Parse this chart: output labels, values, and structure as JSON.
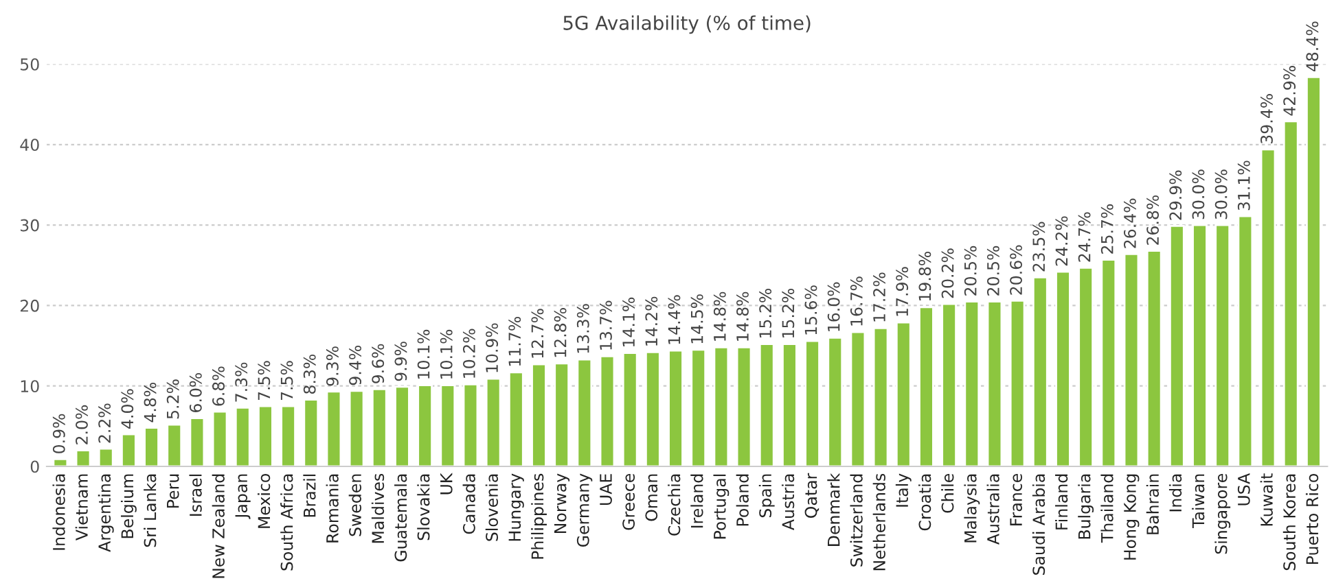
{
  "chart_data": {
    "type": "bar",
    "title": "5G Availability (% of time)",
    "categories": [
      "Indonesia",
      "Vietnam",
      "Argentina",
      "Belgium",
      "Sri Lanka",
      "Peru",
      "Israel",
      "New Zealand",
      "Japan",
      "Mexico",
      "South Africa",
      "Brazil",
      "Romania",
      "Sweden",
      "Maldives",
      "Guatemala",
      "Slovakia",
      "UK",
      "Canada",
      "Slovenia",
      "Hungary",
      "Philippines",
      "Norway",
      "Germany",
      "UAE",
      "Greece",
      "Oman",
      "Czechia",
      "Ireland",
      "Portugal",
      "Poland",
      "Spain",
      "Austria",
      "Qatar",
      "Denmark",
      "Switzerland",
      "Netherlands",
      "Italy",
      "Croatia",
      "Chile",
      "Malaysia",
      "Australia",
      "France",
      "Saudi Arabia",
      "Finland",
      "Bulgaria",
      "Thailand",
      "Hong Kong",
      "Bahrain",
      "India",
      "Taiwan",
      "Singapore",
      "USA",
      "Kuwait",
      "South Korea",
      "Puerto Rico"
    ],
    "values": [
      0.9,
      2.0,
      2.2,
      4.0,
      4.8,
      5.2,
      6.0,
      6.8,
      7.3,
      7.5,
      7.5,
      8.3,
      9.3,
      9.4,
      9.6,
      9.9,
      10.1,
      10.1,
      10.2,
      10.9,
      11.7,
      12.7,
      12.8,
      13.3,
      13.7,
      14.1,
      14.2,
      14.4,
      14.5,
      14.8,
      14.8,
      15.2,
      15.2,
      15.6,
      16.0,
      16.7,
      17.2,
      17.9,
      19.8,
      20.2,
      20.5,
      20.5,
      20.6,
      23.5,
      24.2,
      24.7,
      25.7,
      26.4,
      26.8,
      29.9,
      30.0,
      30.0,
      31.1,
      39.4,
      42.9,
      48.4
    ],
    "value_labels": [
      "0.9%",
      "2.0%",
      "2.2%",
      "4.0%",
      "4.8%",
      "5.2%",
      "6.0%",
      "6.8%",
      "7.3%",
      "7.5%",
      "7.5%",
      "8.3%",
      "9.3%",
      "9.4%",
      "9.6%",
      "9.9%",
      "10.1%",
      "10.1%",
      "10.2%",
      "10.9%",
      "11.7%",
      "12.7%",
      "12.8%",
      "13.3%",
      "13.7%",
      "14.1%",
      "14.2%",
      "14.4%",
      "14.5%",
      "14.8%",
      "14.8%",
      "15.2%",
      "15.2%",
      "15.6%",
      "16.0%",
      "16.7%",
      "17.2%",
      "17.9%",
      "19.8%",
      "20.2%",
      "20.5%",
      "20.5%",
      "20.6%",
      "23.5%",
      "24.2%",
      "24.7%",
      "25.7%",
      "26.4%",
      "26.8%",
      "29.9%",
      "30.0%",
      "30.0%",
      "31.1%",
      "39.4%",
      "42.9%",
      "48.4%"
    ],
    "color": "#8cc63f",
    "ylim": [
      0,
      50
    ],
    "yticks": [
      0,
      10,
      20,
      30,
      40,
      50
    ],
    "grid": "y"
  }
}
